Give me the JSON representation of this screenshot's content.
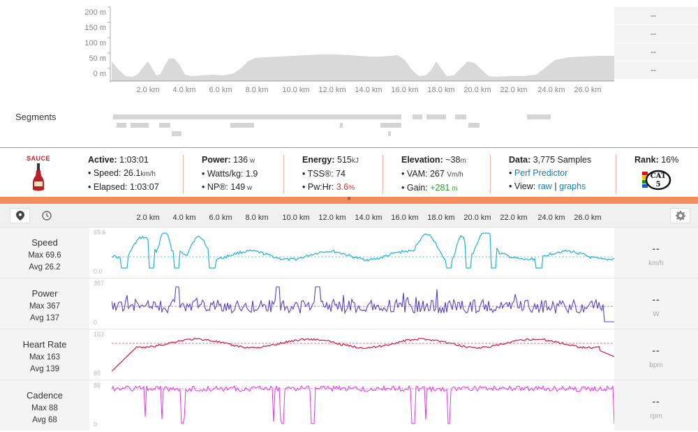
{
  "elevation": {
    "y_labels": [
      "200 m",
      "150 m",
      "100 m",
      "50 m",
      "0 m"
    ],
    "x_labels": [
      "2.0 km",
      "4.0 km",
      "6.0 km",
      "8.0 km",
      "10.0 km",
      "12.0 km",
      "14.0 km",
      "16.0 km",
      "18.0 km",
      "20.0 km",
      "22.0 km",
      "24.0 km",
      "26.0 km"
    ],
    "side_values": [
      "--",
      "--",
      "--",
      "--"
    ],
    "fill_color": "#d9d9d9"
  },
  "segments": {
    "label": "Segments"
  },
  "stats": {
    "logo_text": "SAUCE",
    "active": {
      "label": "Active:",
      "value": "1:03:01",
      "speed_label": "Speed:",
      "speed_value": "26.1",
      "speed_unit": "km/h",
      "elapsed_label": "Elapsed:",
      "elapsed_value": "1:03:07"
    },
    "power": {
      "label": "Power:",
      "value": "136",
      "unit": "w",
      "wkg_label": "Watts/kg:",
      "wkg_value": "1.9",
      "np_label": "NP®:",
      "np_value": "149",
      "np_unit": "w"
    },
    "energy": {
      "label": "Energy:",
      "value": "515",
      "unit": "kJ",
      "tss_label": "TSS®:",
      "tss_value": "74",
      "pwhr_label": "Pw:Hr:",
      "pwhr_value": "3.6",
      "pwhr_unit": "%",
      "pwhr_color": "#e0302a"
    },
    "elevation": {
      "label": "Elevation:",
      "value": "~38",
      "unit": "m",
      "vam_label": "VAM:",
      "vam_value": "267",
      "vam_unit": "Vm/h",
      "gain_label": "Gain:",
      "gain_value": "+281",
      "gain_unit": "m",
      "gain_color": "#2ca02c"
    },
    "data": {
      "label": "Data:",
      "value": "3,775 Samples",
      "perf_link": "Perf Predictor",
      "view_label": "View:",
      "raw_link": "raw",
      "sep": "|",
      "graphs_link": "graphs"
    },
    "rank": {
      "label": "Rank:",
      "value": "16%",
      "badge_top": "CAT",
      "badge_num": "5"
    }
  },
  "toolbar": {
    "expand_glyph": "»",
    "x_labels": [
      "2.0 km",
      "4.0 km",
      "6.0 km",
      "8.0 km",
      "10.0 km",
      "12.0 km",
      "14.0 km",
      "16.0 km",
      "18.0 km",
      "20.0 km",
      "22.0 km",
      "24.0 km",
      "26.0 km"
    ]
  },
  "graphs": [
    {
      "name": "Speed",
      "max_text": "Max 69.6",
      "avg_text": "Avg 26.2",
      "scale_max": "69.6",
      "scale_min": "0.0",
      "dash": "--",
      "unit": "km/h",
      "color": "#1cb3d6"
    },
    {
      "name": "Power",
      "max_text": "Max 367",
      "avg_text": "Avg 137",
      "scale_max": "367",
      "scale_min": "0",
      "dash": "--",
      "unit": "W",
      "color": "#5b3fc4"
    },
    {
      "name": "Heart Rate",
      "max_text": "Max 163",
      "avg_text": "Avg 139",
      "scale_max": "163",
      "scale_min": "80",
      "dash": "--",
      "unit": "bpm",
      "color": "#d4163c"
    },
    {
      "name": "Cadence",
      "max_text": "Max 88",
      "avg_text": "Avg 68",
      "scale_max": "88",
      "scale_min": "0",
      "dash": "--",
      "unit": "rpm",
      "color": "#e535e8"
    }
  ]
}
